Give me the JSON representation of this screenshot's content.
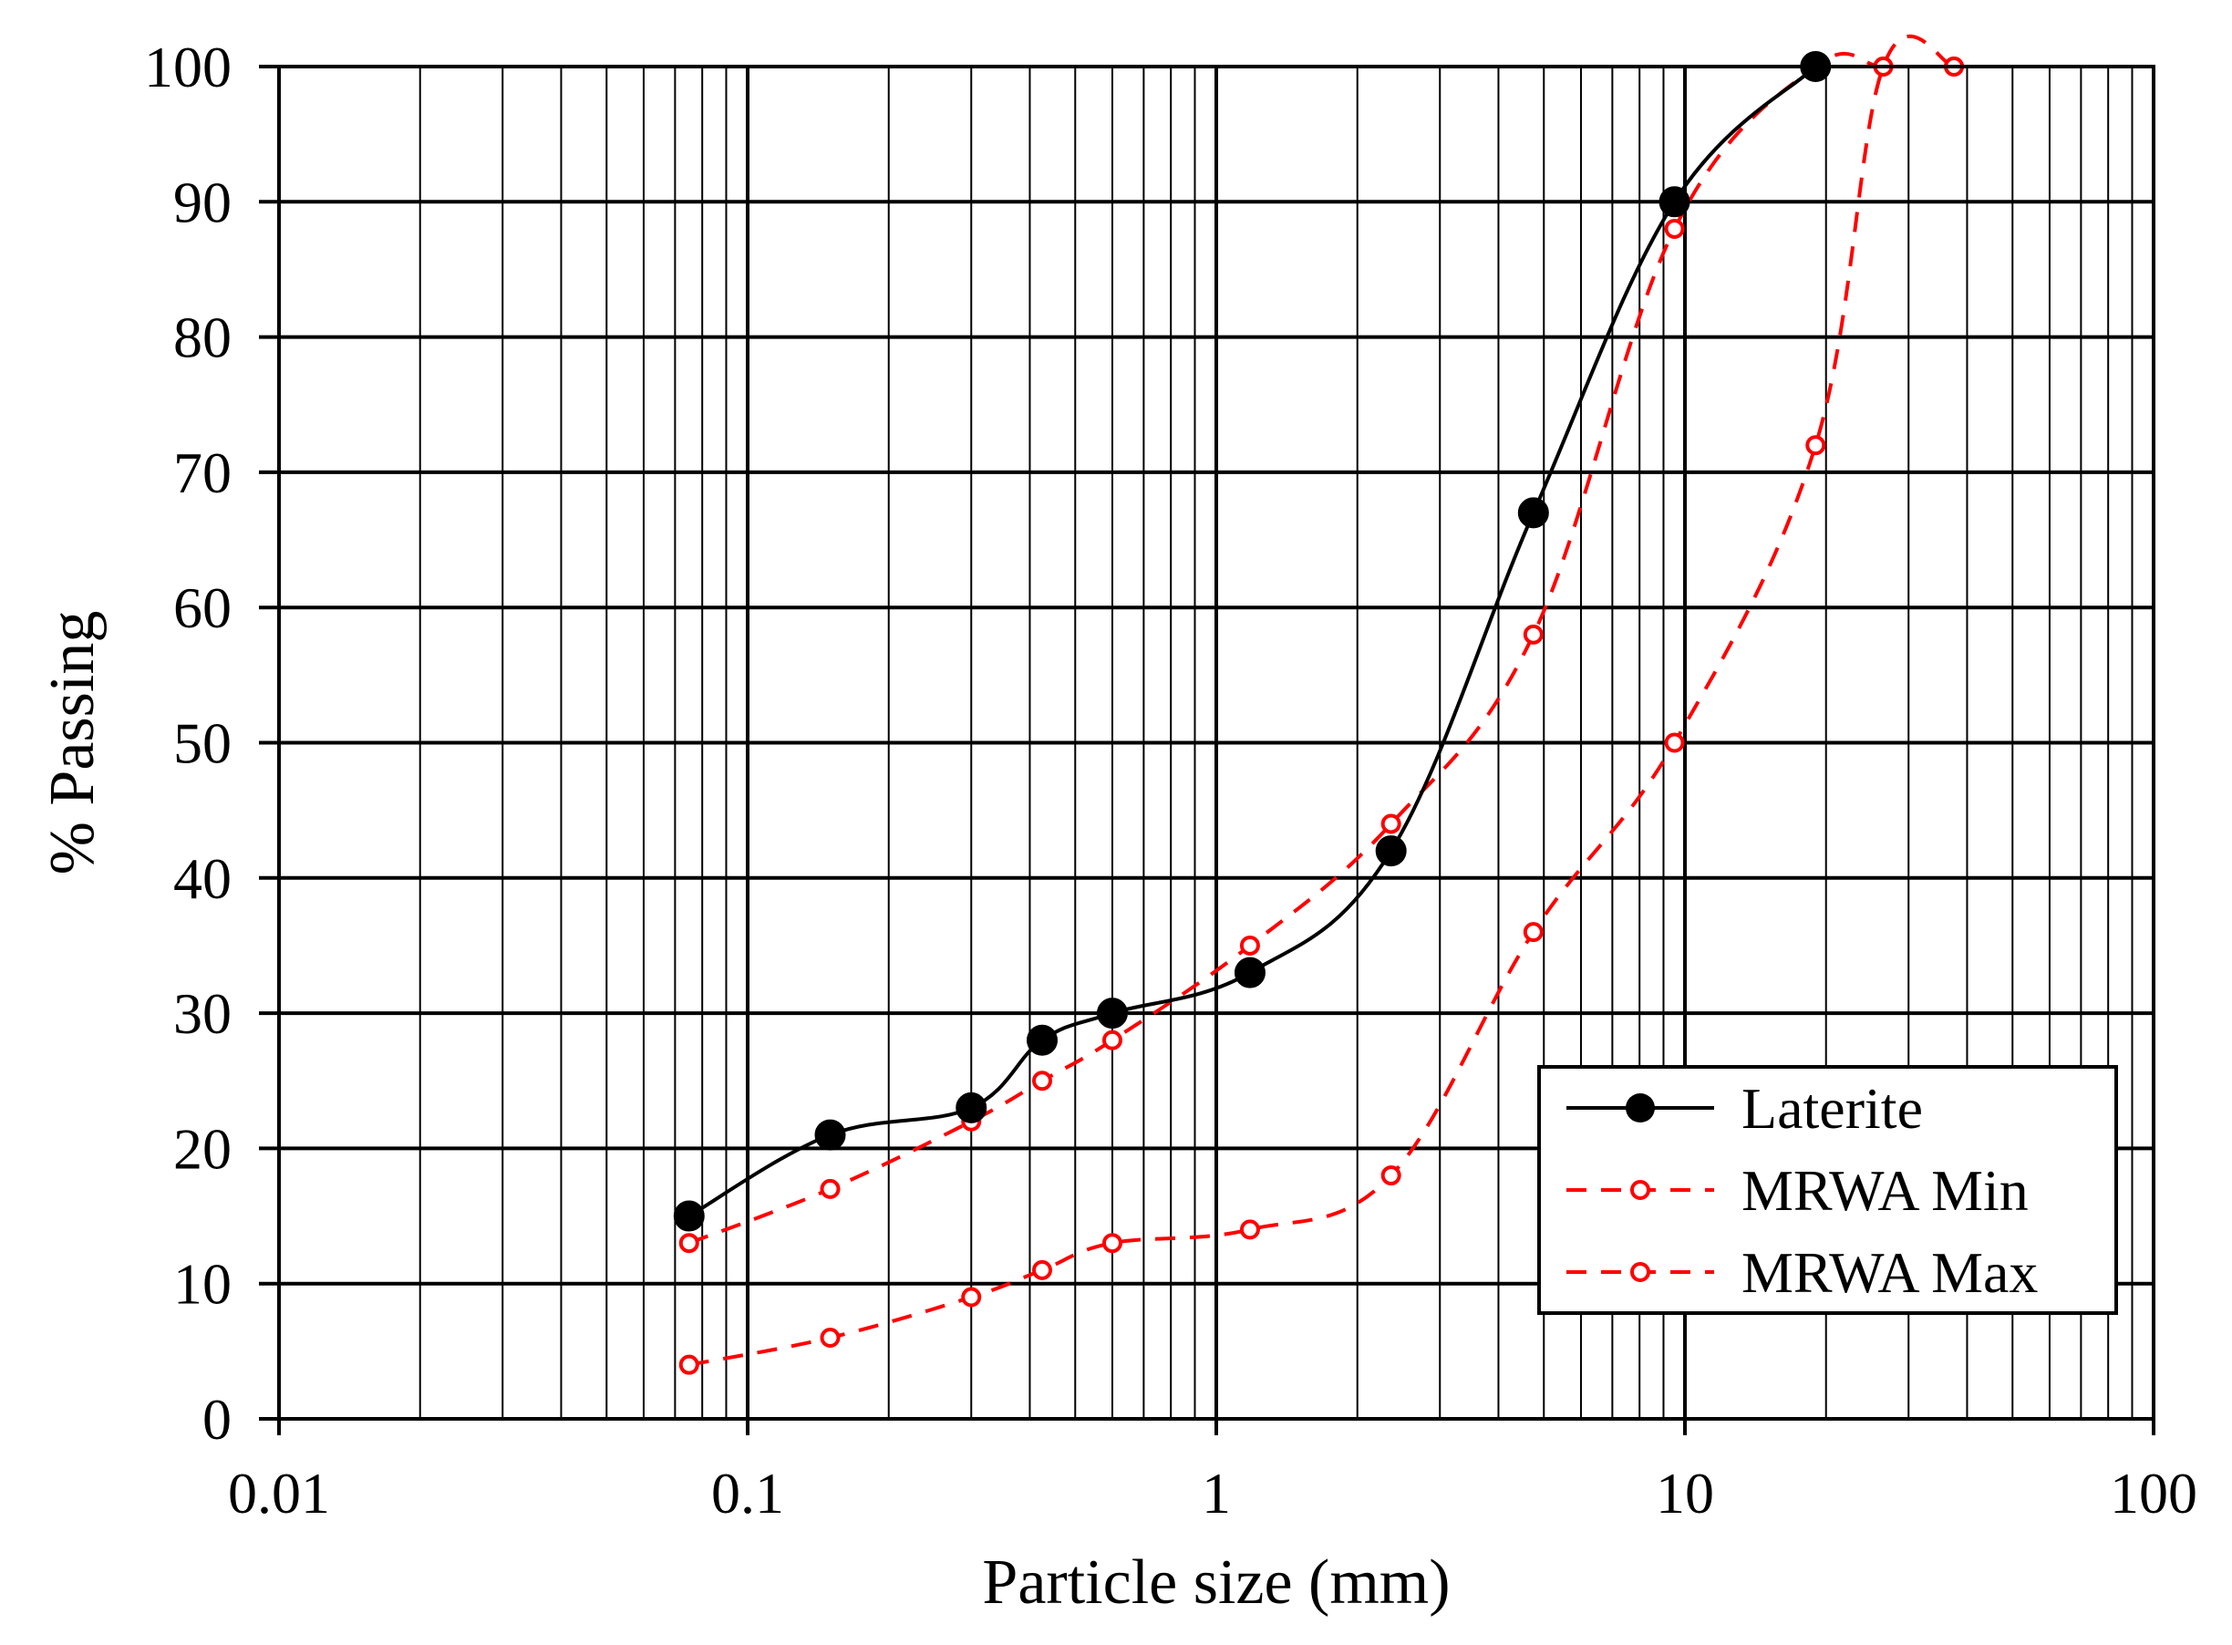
{
  "chart_data": {
    "type": "line",
    "xscale": "log",
    "title": "",
    "xlabel": "Particle size (mm)",
    "ylabel": "% Passing",
    "xlim": [
      0.01,
      100
    ],
    "ylim": [
      0,
      100
    ],
    "grid": true,
    "legend_position": "bottom-right",
    "x_tick_labels": [
      "0.01",
      "0.1",
      "1",
      "10",
      "100"
    ],
    "y_tick_labels": [
      "0",
      "10",
      "20",
      "30",
      "40",
      "50",
      "60",
      "70",
      "80",
      "90",
      "100"
    ],
    "series": [
      {
        "name": "Laterite",
        "color": "#000000",
        "line_style": "solid",
        "marker": "filled-circle",
        "x": [
          0.075,
          0.15,
          0.3,
          0.425,
          0.6,
          1.18,
          2.36,
          4.75,
          9.5,
          19
        ],
        "y": [
          15,
          21,
          23,
          28,
          30,
          33,
          42,
          67,
          90,
          100
        ]
      },
      {
        "name": "MRWA Min",
        "color": "#ff0000",
        "line_style": "dashed",
        "marker": "open-circle",
        "x": [
          0.075,
          0.15,
          0.3,
          0.425,
          0.6,
          1.18,
          2.36,
          4.75,
          9.5,
          19,
          26.5,
          37.5
        ],
        "y": [
          13,
          17,
          22,
          25,
          28,
          35,
          44,
          58,
          88,
          100,
          100,
          100
        ]
      },
      {
        "name": "MRWA Max",
        "color": "#ff0000",
        "line_style": "dashed",
        "marker": "open-circle",
        "x": [
          0.075,
          0.15,
          0.3,
          0.425,
          0.6,
          1.18,
          2.36,
          4.75,
          9.5,
          19,
          26.5,
          37.5
        ],
        "y": [
          4,
          6,
          9,
          11,
          13,
          14,
          18,
          36,
          50,
          72,
          100,
          100
        ]
      }
    ]
  }
}
